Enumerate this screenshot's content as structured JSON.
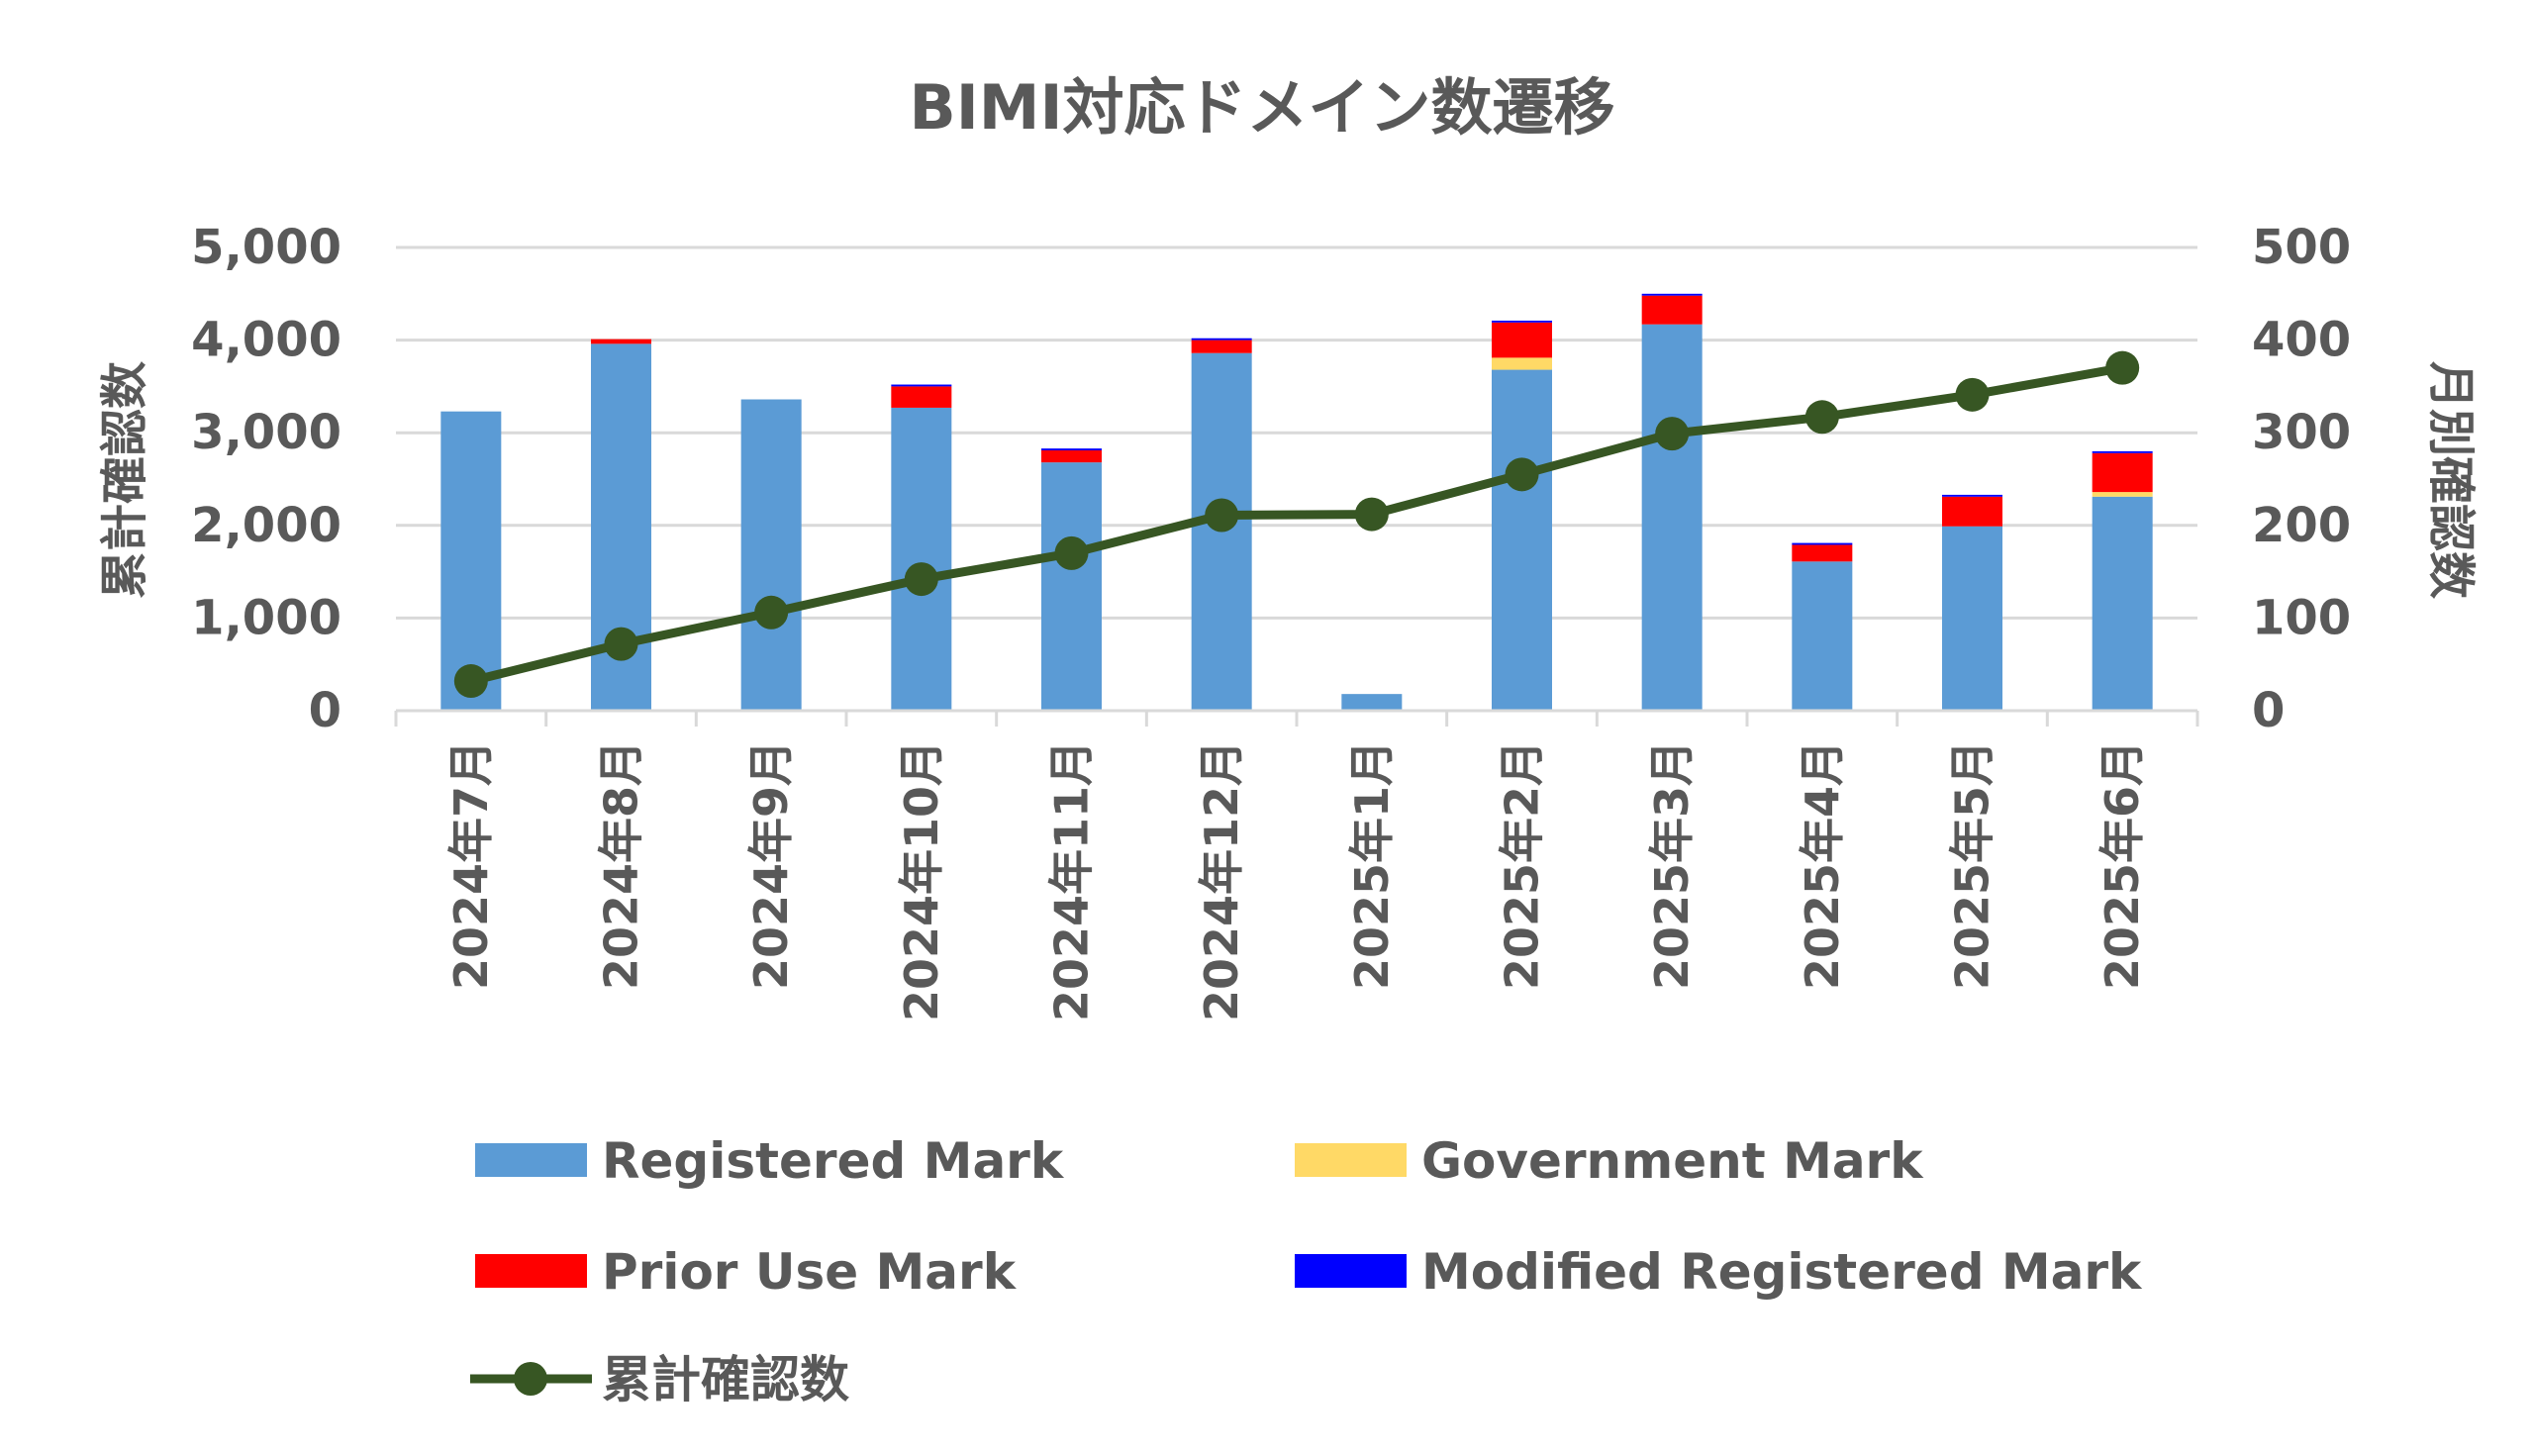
{
  "chart_data": {
    "type": "bar",
    "title": "BIMI対応ドメイン数遷移",
    "categories": [
      "2024年7月",
      "2024年8月",
      "2024年9月",
      "2024年10月",
      "2024年11月",
      "2024年12月",
      "2025年1月",
      "2025年2月",
      "2025年3月",
      "2025年4月",
      "2025年5月",
      "2025年6月"
    ],
    "y_left": {
      "label": "累計確認数",
      "range": [
        0,
        5000
      ],
      "ticks": [
        0,
        1000,
        2000,
        3000,
        4000,
        5000
      ],
      "tick_labels": [
        "0",
        "1,000",
        "2,000",
        "3,000",
        "4,000",
        "5,000"
      ]
    },
    "y_right": {
      "label": "月別確認数",
      "range": [
        0,
        500
      ],
      "ticks": [
        0,
        100,
        200,
        300,
        400,
        500
      ],
      "tick_labels": [
        "0",
        "100",
        "200",
        "300",
        "400",
        "500"
      ]
    },
    "grid": true,
    "legend_position": "bottom",
    "series": [
      {
        "name": "Registered Mark",
        "kind": "bar",
        "axis": "right",
        "color": "#5B9BD5",
        "values": [
          323,
          396,
          336,
          327,
          268,
          386,
          18,
          368,
          417,
          161,
          199,
          231
        ]
      },
      {
        "name": "Government Mark",
        "kind": "bar",
        "axis": "right",
        "color": "#FFD966",
        "values": [
          0,
          0,
          0,
          0,
          0,
          0,
          0,
          13,
          0,
          0,
          0,
          5
        ]
      },
      {
        "name": "Prior Use Mark",
        "kind": "bar",
        "axis": "right",
        "color": "#FF0000",
        "values": [
          0,
          5,
          0,
          23,
          13,
          14,
          0,
          38,
          31,
          18,
          32,
          42
        ]
      },
      {
        "name": "Modified Registered Mark",
        "kind": "bar",
        "axis": "right",
        "color": "#0000FF",
        "values": [
          0,
          0,
          0,
          2,
          2,
          2,
          0,
          2,
          2,
          2,
          2,
          2
        ]
      },
      {
        "name": "累計確認数",
        "kind": "line",
        "axis": "left",
        "color": "#375623",
        "values": [
          320,
          720,
          1060,
          1420,
          1700,
          2110,
          2120,
          2550,
          2990,
          3170,
          3410,
          3700
        ]
      }
    ]
  }
}
